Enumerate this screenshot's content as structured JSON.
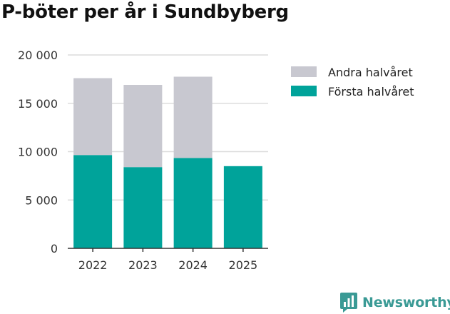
{
  "chart_data": {
    "type": "bar",
    "stacked": true,
    "title": "P-böter per år i Sundbyberg",
    "xlabel": "",
    "ylabel": "",
    "categories": [
      "2022",
      "2023",
      "2024",
      "2025"
    ],
    "series": [
      {
        "name": "Första halvåret",
        "color": "#00a39a",
        "values": [
          9650,
          8400,
          9350,
          8500
        ]
      },
      {
        "name": "Andra halvåret",
        "color": "#c8c8d0",
        "values": [
          7950,
          8500,
          8400,
          0
        ]
      }
    ],
    "ylim": [
      0,
      20000
    ],
    "yticks": [
      0,
      5000,
      10000,
      15000,
      20000
    ],
    "ytick_labels": [
      "0",
      "5 000",
      "10 000",
      "15 000",
      "20 000"
    ],
    "grid": true,
    "legend": {
      "position": "top-right",
      "entries": [
        "Andra halvåret",
        "Första halvåret"
      ]
    }
  },
  "branding": {
    "name": "Newsworthy"
  }
}
